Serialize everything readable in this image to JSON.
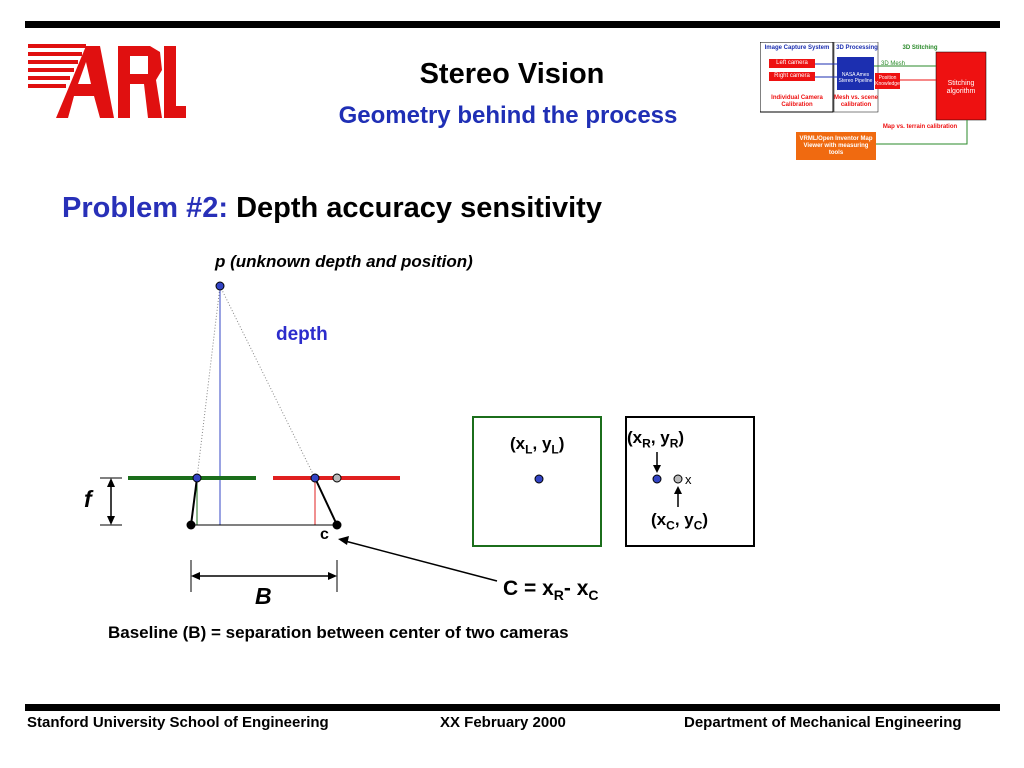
{
  "header": {
    "logo_text": "ARL",
    "title": "Stereo Vision",
    "subtitle": "Geometry behind the process"
  },
  "flowchart": {
    "col1_head": "Image Capture System",
    "col2_head": "3D Processing",
    "col3_head": "3D Stitching",
    "left_camera": "Left camera",
    "right_camera": "Right camera",
    "pipeline": "NASA Ames Stereo Pipeline",
    "mesh_label": "3D Mesh",
    "position_knowledge": "Position Knowledge",
    "stitching": "Stitching algorithm",
    "calibration": "Individual Camera Calibration",
    "mesh_vs_scene": "Mesh vs. scene calibration",
    "map_terrain": "Map vs. terrain calibration",
    "viewer": "VRML/Open Inventor Map Viewer with measuring tools"
  },
  "problem": {
    "label": "Problem #2:",
    "text": "Depth accuracy sensitivity"
  },
  "diagram": {
    "point_label": "p (unknown depth and position)",
    "depth_label": "depth",
    "f_label": "f",
    "c_label": "c",
    "B_label": "B",
    "left_coord": {
      "x": "x",
      "xs": "L",
      "sep": ", ",
      "y": "y",
      "ys": "L"
    },
    "right_coord": {
      "x": "x",
      "xs": "R",
      "sep": ", ",
      "y": "y",
      "ys": "R"
    },
    "center_coord": {
      "x": "x",
      "xs": "C",
      "sep": ", ",
      "y": "y",
      "ys": "C"
    },
    "x_mark": "x",
    "equation": {
      "lhs": "C = x",
      "s1": "R",
      "mid": "- x",
      "s2": "C"
    },
    "baseline_text": "Baseline (B) = separation between center of two cameras",
    "colors": {
      "line_green": "#1b6e1b",
      "line_red": "#e02020",
      "point_blue": "#3344c4",
      "point_gray": "#bbbbbb"
    }
  },
  "footer": {
    "left": "Stanford University School of Engineering",
    "center": "XX February 2000",
    "right": "Department of Mechanical Engineering"
  }
}
